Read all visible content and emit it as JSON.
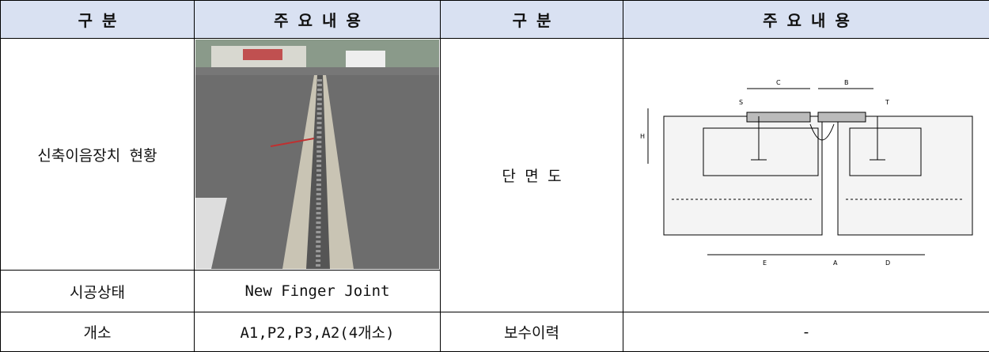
{
  "table": {
    "header": [
      "구 분",
      "주 요 내 용",
      "구 분",
      "주 요 내 용"
    ],
    "rows": [
      [
        "신축이음장치 현황"
      ],
      [
        "시공상태",
        "New Finger Joint"
      ],
      [
        "개소",
        "A1,P2,P3,A2(4개소)",
        "보수이력",
        "-"
      ]
    ],
    "section_label": "단 면 도"
  },
  "diagram": {
    "labels": [
      "C",
      "B",
      "T",
      "S",
      "H",
      "E",
      "A",
      "D"
    ]
  }
}
